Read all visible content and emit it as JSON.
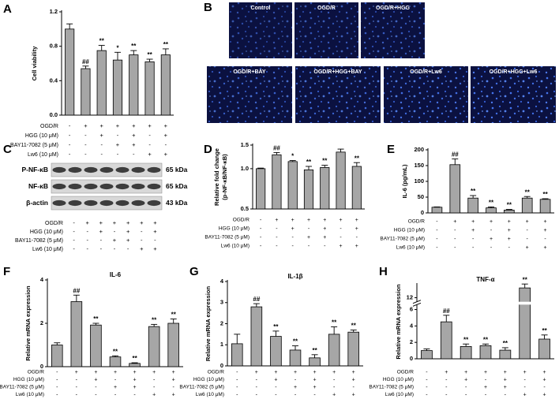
{
  "chart_data": [
    {
      "type": "bar",
      "panel": "A",
      "ylabel": "Cell viability",
      "values": [
        1.0,
        0.54,
        0.75,
        0.64,
        0.7,
        0.62,
        0.7
      ],
      "errors": [
        0.06,
        0.03,
        0.06,
        0.09,
        0.05,
        0.03,
        0.07
      ],
      "annotations": [
        null,
        "##",
        "**",
        "*",
        "**",
        "**",
        "**"
      ],
      "ylim": [
        0,
        1.2
      ],
      "yticks": [
        {
          "value": 0,
          "label": "0.0"
        },
        0.4,
        0.8,
        1.2
      ],
      "color": "#a6a6a6",
      "treatment_rows": [
        {
          "label": "OGD/R",
          "signs": [
            "-",
            "+",
            "+",
            "+",
            "+",
            "+",
            "+"
          ]
        },
        {
          "label": "HGG (10 μM)",
          "signs": [
            "-",
            "-",
            "+",
            "-",
            "+",
            "-",
            "+"
          ]
        },
        {
          "label": "BAY11-7082 (5 μM)",
          "signs": [
            "-",
            "-",
            "-",
            "+",
            "+",
            "-",
            "-"
          ]
        },
        {
          "label": "Lw6 (10 μM)",
          "signs": [
            "-",
            "-",
            "-",
            "-",
            "-",
            "+",
            "+"
          ]
        }
      ]
    },
    {
      "type": "bar",
      "panel": "D",
      "ylabel": [
        "Relative fold change",
        "(p-NF-κB/NF-κB)"
      ],
      "log_scale": true,
      "values": [
        1.0,
        1.27,
        1.13,
        0.98,
        1.02,
        1.33,
        1.04
      ],
      "errors": [
        0.01,
        0.05,
        0.02,
        0.06,
        0.04,
        0.07,
        0.07
      ],
      "annotations": [
        null,
        "##",
        "*",
        "**",
        "**",
        null,
        "**"
      ],
      "ylim": [
        0.5,
        1.5
      ],
      "yticks": [
        0.5,
        {
          "value": 1.0,
          "label": "1.0"
        },
        1.5
      ],
      "color": "#a6a6a6",
      "treatment_rows": [
        {
          "label": "OGD/R",
          "signs": [
            "-",
            "+",
            "+",
            "+",
            "+",
            "+",
            "+"
          ]
        },
        {
          "label": "HGG (10 μM)",
          "signs": [
            "-",
            "-",
            "+",
            "-",
            "+",
            "-",
            "+"
          ]
        },
        {
          "label": "BAY11-7082 (5 μM)",
          "signs": [
            "-",
            "-",
            "-",
            "+",
            "+",
            "-",
            "-"
          ]
        },
        {
          "label": "Lw6 (10 μM)",
          "signs": [
            "-",
            "-",
            "-",
            "-",
            "-",
            "+",
            "+"
          ]
        }
      ]
    },
    {
      "type": "bar",
      "panel": "E",
      "ylabel": "IL-6 (pg/mL)",
      "values": [
        18,
        153,
        47,
        16,
        9,
        47,
        43
      ],
      "errors": [
        1,
        18,
        8,
        3,
        2,
        5,
        2
      ],
      "annotations": [
        null,
        "##",
        "**",
        "**",
        "**",
        "**",
        "**"
      ],
      "ylim": [
        0,
        200
      ],
      "yticks": [
        0,
        50,
        100,
        150,
        200
      ],
      "color": "#a6a6a6",
      "treatment_rows": [
        {
          "label": "OGD/R",
          "signs": [
            "-",
            "+",
            "+",
            "+",
            "+",
            "+",
            "+"
          ]
        },
        {
          "label": "HGG (10 μM)",
          "signs": [
            "-",
            "-",
            "+",
            "-",
            "+",
            "-",
            "+"
          ]
        },
        {
          "label": "BAY11-7082 (5 μM)",
          "signs": [
            "-",
            "-",
            "-",
            "+",
            "+",
            "-",
            "-"
          ]
        },
        {
          "label": "Lw6 (10 μM)",
          "signs": [
            "-",
            "-",
            "-",
            "-",
            "-",
            "+",
            "+"
          ]
        }
      ]
    },
    {
      "type": "bar",
      "panel": "F",
      "title": "IL-6",
      "ylabel": "Relative mRNA expression",
      "values": [
        1.0,
        3.0,
        1.92,
        0.45,
        0.15,
        1.85,
        2.0
      ],
      "errors": [
        0.1,
        0.3,
        0.08,
        0.05,
        0.03,
        0.1,
        0.2
      ],
      "annotations": [
        null,
        "##",
        "**",
        "**",
        "**",
        "**",
        "**"
      ],
      "ylim": [
        0,
        4
      ],
      "yticks": [
        0,
        2,
        4
      ],
      "color": "#a6a6a6",
      "treatment_rows": [
        {
          "label": "OGD/R",
          "signs": [
            "-",
            "+",
            "+",
            "+",
            "+",
            "+",
            "+"
          ]
        },
        {
          "label": "HGG (10 μM)",
          "signs": [
            "-",
            "-",
            "+",
            "-",
            "+",
            "-",
            "+"
          ]
        },
        {
          "label": "BAY11-7082 (5 μM)",
          "signs": [
            "-",
            "-",
            "-",
            "+",
            "+",
            "-",
            "-"
          ]
        },
        {
          "label": "Lw6 (10 μM)",
          "signs": [
            "-",
            "-",
            "-",
            "-",
            "-",
            "+",
            "+"
          ]
        }
      ]
    },
    {
      "type": "bar",
      "panel": "G",
      "title": "IL-1β",
      "ylabel": "Relative mRNA expression",
      "values": [
        1.05,
        2.8,
        1.4,
        0.75,
        0.38,
        1.5,
        1.6
      ],
      "errors": [
        0.45,
        0.15,
        0.25,
        0.2,
        0.15,
        0.35,
        0.1
      ],
      "annotations": [
        null,
        "##",
        "**",
        "**",
        "**",
        "**",
        "**"
      ],
      "ylim": [
        0,
        4
      ],
      "yticks": [
        0,
        1,
        2,
        3,
        4
      ],
      "color": "#a6a6a6",
      "treatment_rows": [
        {
          "label": "OGD/R",
          "signs": [
            "-",
            "+",
            "+",
            "+",
            "+",
            "+",
            "+"
          ]
        },
        {
          "label": "HGG (10 μM)",
          "signs": [
            "-",
            "-",
            "+",
            "-",
            "+",
            "-",
            "+"
          ]
        },
        {
          "label": "BAY11-7082 (5 μM)",
          "signs": [
            "-",
            "-",
            "-",
            "+",
            "+",
            "-",
            "-"
          ]
        },
        {
          "label": "Lw6 (10 μM)",
          "signs": [
            "-",
            "-",
            "-",
            "-",
            "-",
            "+",
            "+"
          ]
        }
      ]
    },
    {
      "type": "bar",
      "panel": "H",
      "title": "TNF-α",
      "ylabel": "Relative mRNA expression",
      "values": [
        1.0,
        4.5,
        1.5,
        1.6,
        1.05,
        13.5,
        2.4
      ],
      "errors": [
        0.2,
        0.8,
        0.3,
        0.2,
        0.3,
        0.6,
        0.5
      ],
      "annotations": [
        null,
        "##",
        "**",
        "**",
        "**",
        "**",
        "**"
      ],
      "ylim": [
        0,
        14
      ],
      "y_break": [
        6.5,
        11.5
      ],
      "yticks": [
        0,
        2,
        4,
        6,
        12
      ],
      "color": "#a6a6a6",
      "treatment_rows": [
        {
          "label": "OGD/R",
          "signs": [
            "-",
            "+",
            "+",
            "+",
            "+",
            "+",
            "+"
          ]
        },
        {
          "label": "HGG (10 μM)",
          "signs": [
            "-",
            "-",
            "+",
            "-",
            "+",
            "-",
            "+"
          ]
        },
        {
          "label": "BAY11-7082 (5 μM)",
          "signs": [
            "-",
            "-",
            "-",
            "+",
            "+",
            "-",
            "-"
          ]
        },
        {
          "label": "Lw6 (10 μM)",
          "signs": [
            "-",
            "-",
            "-",
            "-",
            "-",
            "+",
            "+"
          ]
        }
      ]
    }
  ],
  "images": {
    "panel": "B",
    "labels": [
      "Control",
      "OGD/R",
      "OGD/R+HGG",
      "OGD/R+BAY",
      "OGD/R+HGG+BAY",
      "OGD/R+Lw6",
      "OGD/R+HGG+Lw6"
    ]
  },
  "blot": {
    "panel": "C",
    "rows": [
      {
        "label": "P-NF-κB",
        "size": "65 kDa"
      },
      {
        "label": "NF-κB",
        "size": "65 kDa"
      },
      {
        "label": "β-actin",
        "size": "43 kDa"
      }
    ],
    "treatment_rows": [
      {
        "label": "OGD/R",
        "signs": [
          "-",
          "+",
          "+",
          "+",
          "+",
          "+",
          "+"
        ]
      },
      {
        "label": "HGG (10 μM)",
        "signs": [
          "-",
          "-",
          "+",
          "-",
          "+",
          "-",
          "+"
        ]
      },
      {
        "label": "BAY11-7082 (5 μM)",
        "signs": [
          "-",
          "-",
          "-",
          "+",
          "+",
          "-",
          "-"
        ]
      },
      {
        "label": "Lw6 (10 μM)",
        "signs": [
          "-",
          "-",
          "-",
          "-",
          "-",
          "+",
          "+"
        ]
      }
    ]
  }
}
